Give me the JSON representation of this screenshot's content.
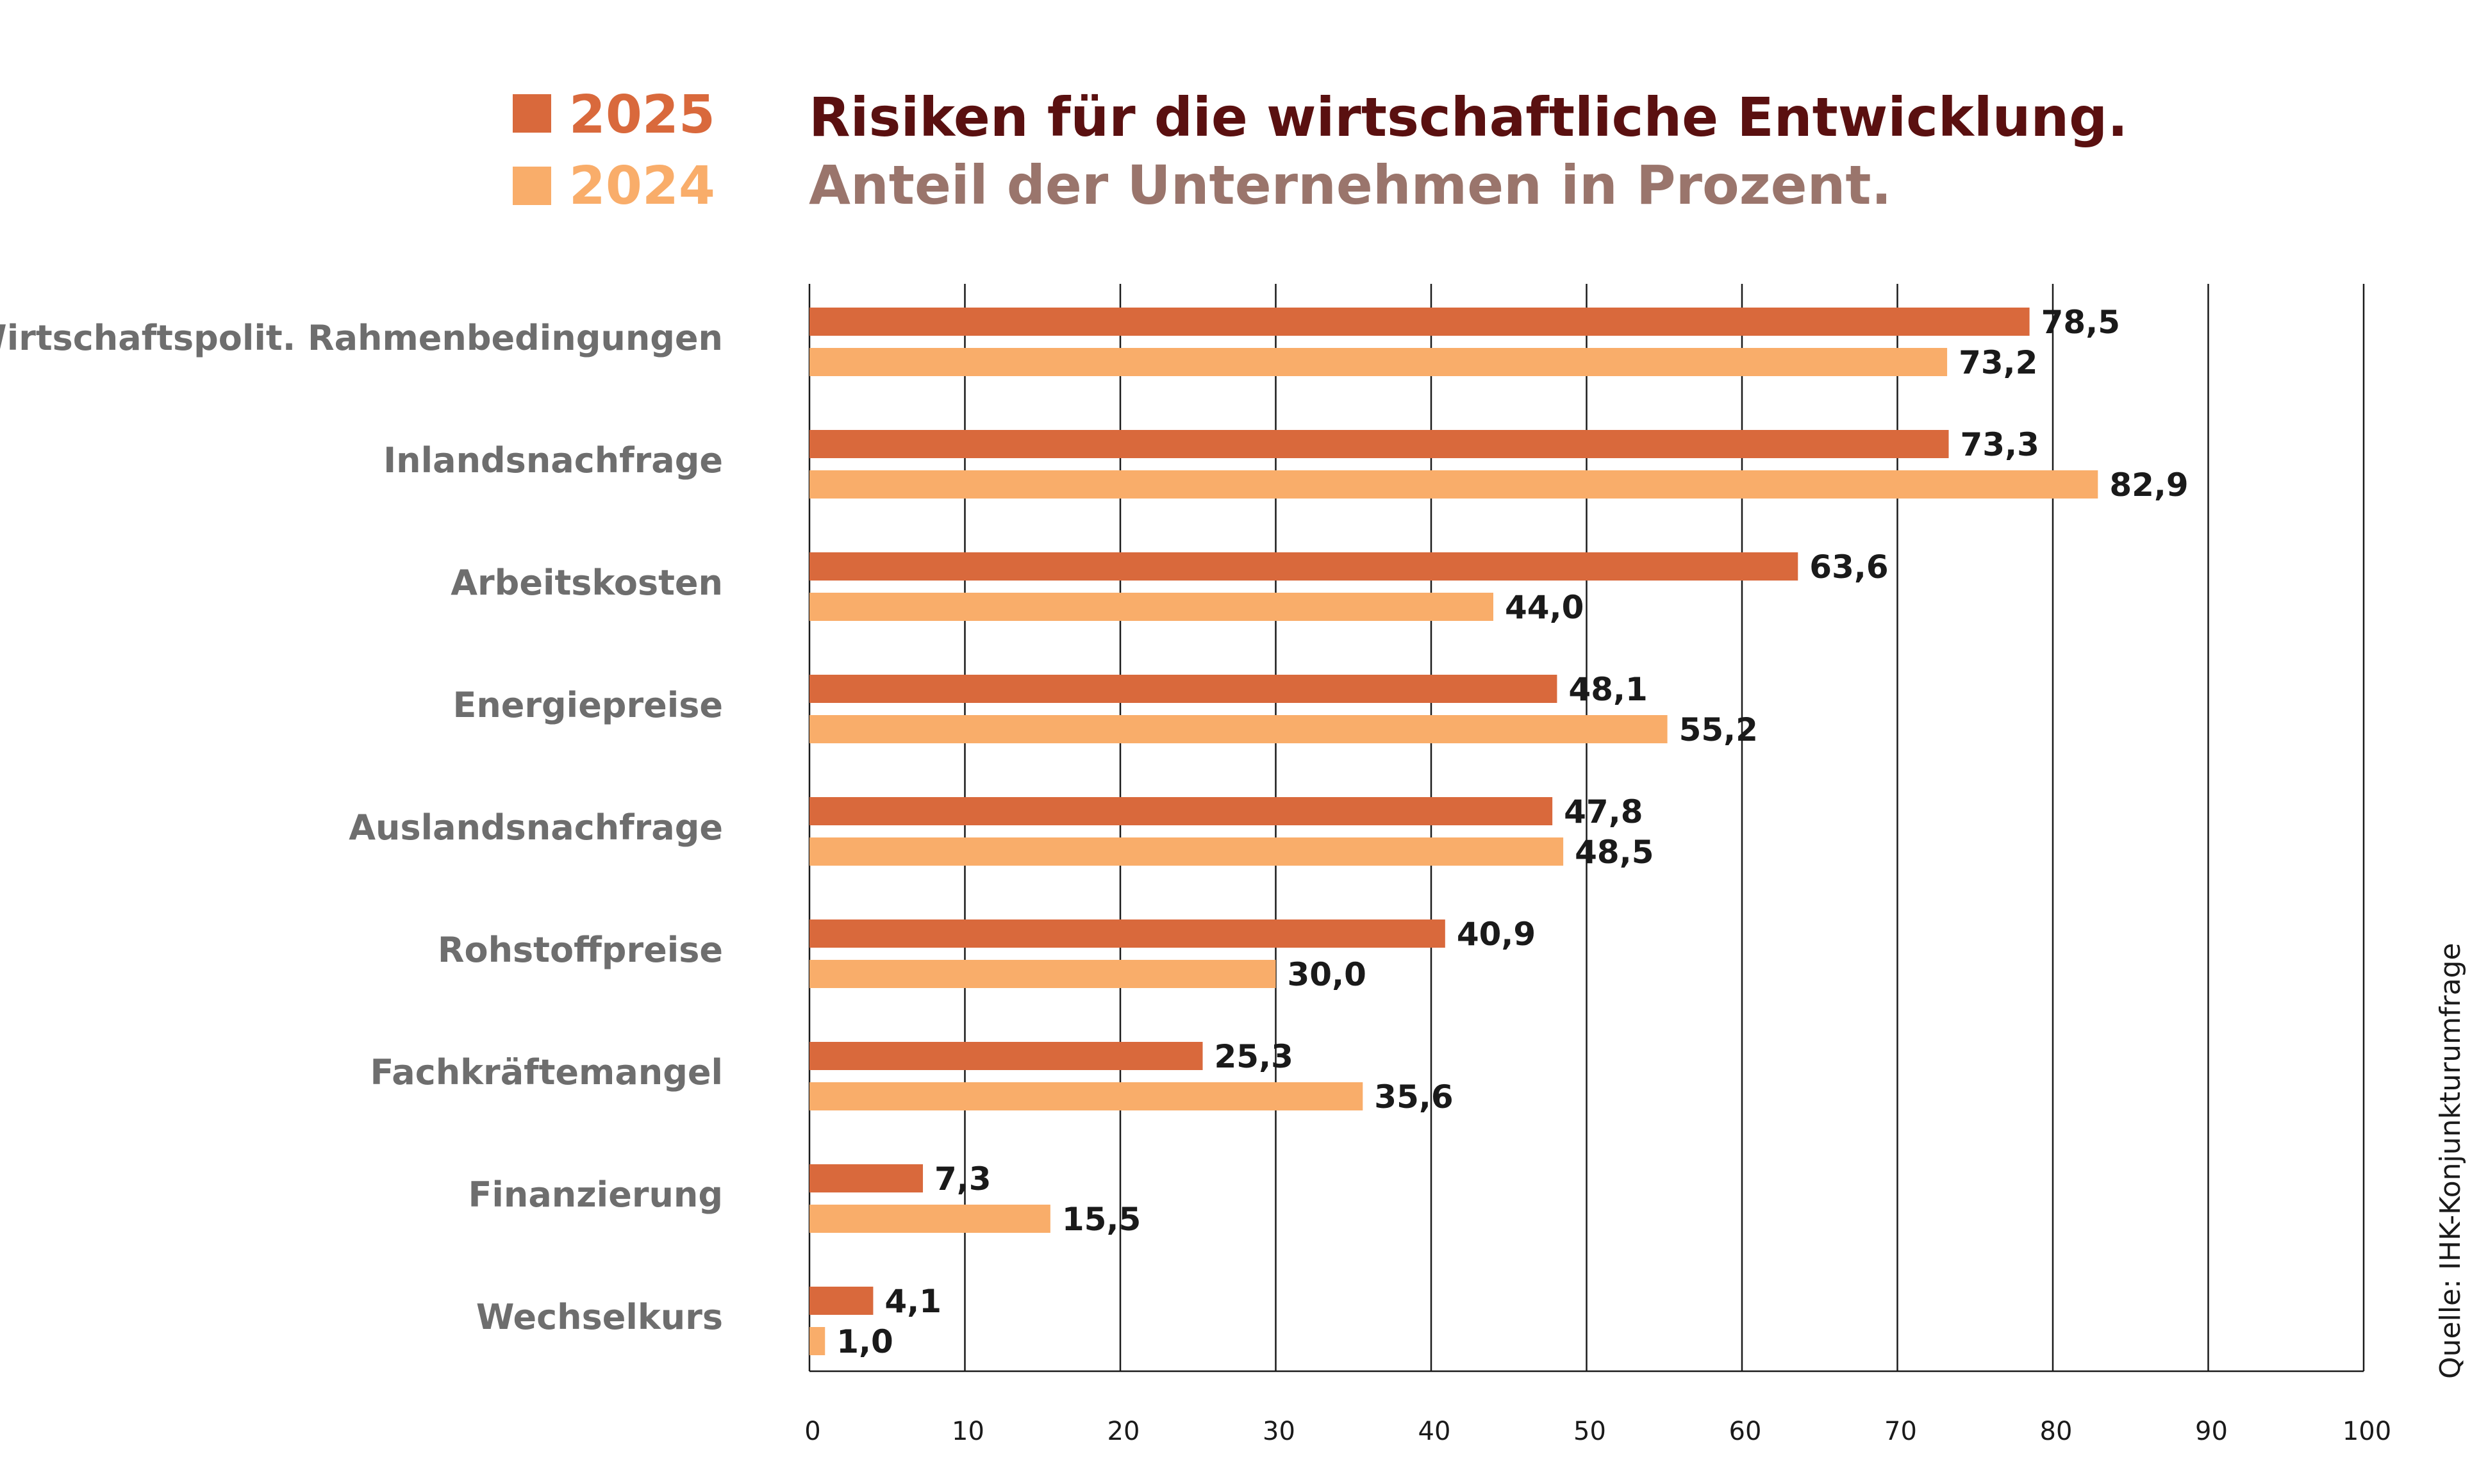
{
  "title": "Risiken für die wirtschaftliche Entwicklung.",
  "subtitle": "Anteil der Unternehmen in Prozent.",
  "source": "Quelle: IHK-Konjunkturumfrage",
  "legend": [
    {
      "label": "2025",
      "color": "#d9693c"
    },
    {
      "label": "2024",
      "color": "#f9ad6a"
    }
  ],
  "colors": {
    "title": "#5a1010",
    "subtitle": "#9a756c",
    "category": "#6e6e6e"
  },
  "chart_data": {
    "type": "bar",
    "orientation": "horizontal",
    "categories": [
      "Wirtschaftspolit. Rahmenbedingungen",
      "Inlandsnachfrage",
      "Arbeitskosten",
      "Energiepreise",
      "Auslandsnachfrage",
      "Rohstoffpreise",
      "Fachkräftemangel",
      "Finanzierung",
      "Wechselkurs"
    ],
    "series": [
      {
        "name": "2025",
        "color": "#d9693c",
        "values": [
          78.5,
          73.3,
          63.6,
          48.1,
          47.8,
          40.9,
          25.3,
          7.3,
          4.1
        ],
        "labels": [
          "78,5",
          "73,3",
          "63,6",
          "48,1",
          "47,8",
          "40,9",
          "25,3",
          "7,3",
          "4,1"
        ]
      },
      {
        "name": "2024",
        "color": "#f9ad6a",
        "values": [
          73.2,
          82.9,
          44.0,
          55.2,
          48.5,
          30.0,
          35.6,
          15.5,
          1.0
        ],
        "labels": [
          "73,2",
          "82,9",
          "44,0",
          "55,2",
          "48,5",
          "30,0",
          "35,6",
          "15,5",
          "1,0"
        ]
      }
    ],
    "xlim": [
      0,
      100
    ],
    "xticks": [
      0,
      10,
      20,
      30,
      40,
      50,
      60,
      70,
      80,
      90,
      100
    ],
    "xtick_labels": [
      "0",
      "10",
      "20",
      "30",
      "40",
      "50",
      "60",
      "70",
      "80",
      "90",
      "100"
    ],
    "grid": true,
    "legend_position": "top-left"
  }
}
